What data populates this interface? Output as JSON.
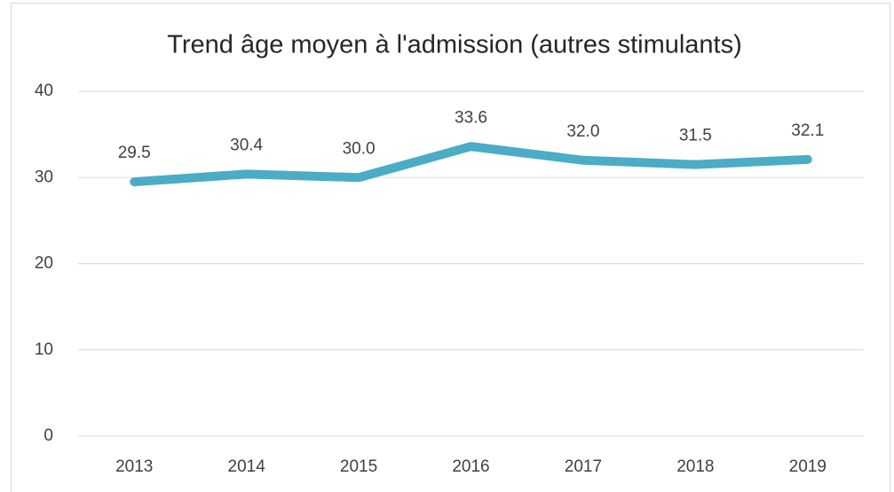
{
  "chart_data": {
    "type": "line",
    "title": "Trend âge moyen à l'admission (autres stimulants)",
    "categories": [
      "2013",
      "2014",
      "2015",
      "2016",
      "2017",
      "2018",
      "2019"
    ],
    "values": [
      29.5,
      30.4,
      30,
      33.6,
      32,
      31.5,
      32.1
    ],
    "value_labels": [
      "29.5",
      "30.4",
      "30.0",
      "33.6",
      "32.0",
      "31.5",
      "32.1"
    ],
    "color": "#4bacc6",
    "ylim": [
      0,
      40
    ],
    "yticks": [
      0,
      10,
      20,
      30,
      40
    ],
    "grid": true
  }
}
